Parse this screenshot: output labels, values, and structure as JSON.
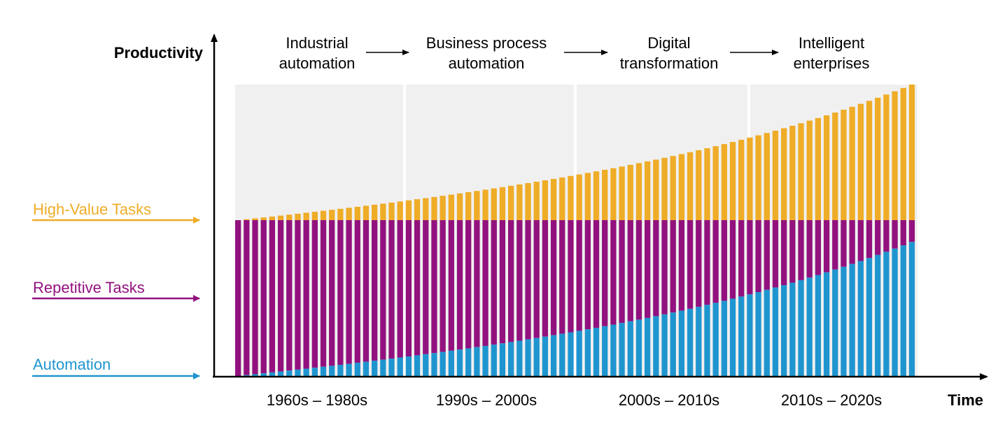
{
  "colors": {
    "automation": "#1f95d0",
    "repetitive": "#92117e",
    "high_value": "#efac27",
    "era_background": "#f0f0f0",
    "axis": "#000000"
  },
  "chart_data": {
    "type": "bar",
    "stacked": true,
    "ylabel": "Productivity",
    "xlabel": "Time",
    "grid": false,
    "eras": [
      {
        "period": "1960s – 1980s",
        "stage": [
          "Industrial",
          "automation"
        ]
      },
      {
        "period": "1990s – 2000s",
        "stage": [
          "Business process",
          "automation"
        ]
      },
      {
        "period": "2000s – 2010s",
        "stage": [
          "Digital",
          "transformation"
        ]
      },
      {
        "period": "2010s – 2020s",
        "stage": [
          "Intelligent",
          "enterprises"
        ]
      }
    ],
    "series": [
      {
        "name": "Automation",
        "color": "#1f95d0",
        "trend": "rises from 0 to about 86% of the repetitive-task level, accelerating over time"
      },
      {
        "name": "Repetitive Tasks",
        "color": "#92117e",
        "trend": "constant total level; shrinking share as automation grows"
      },
      {
        "name": "High-Value Tasks",
        "color": "#efac27",
        "trend": "grows on top of the constant base, accelerating to about 87% of the base level"
      }
    ],
    "bar_count": 80,
    "relative_levels": {
      "base": 1.0,
      "automation_end": 0.86,
      "high_value_end": 0.87
    }
  }
}
